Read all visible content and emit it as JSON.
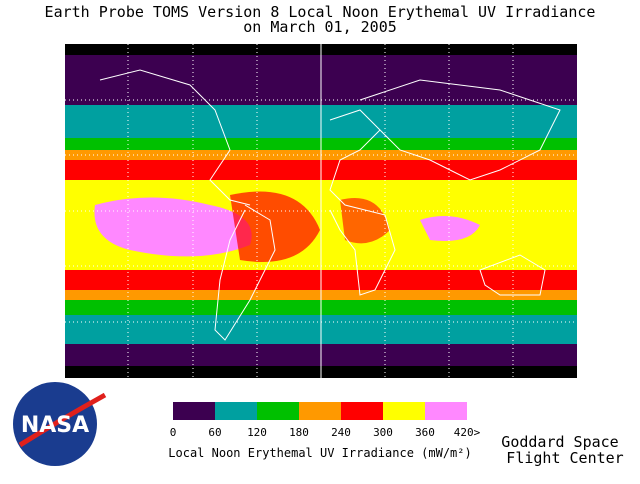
{
  "header": {
    "title": "Earth Probe TOMS Version 8 Local Noon Erythemal UV Irradiance",
    "subtitle": "on March 01, 2005"
  },
  "colorbar": {
    "colors": [
      "#3c0050",
      "#00a0a0",
      "#00c000",
      "#ff9900",
      "#ff0000",
      "#ffff00",
      "#ff88ff"
    ],
    "ticks": [
      "0",
      "60",
      "120",
      "180",
      "240",
      "300",
      "360",
      "420>"
    ],
    "label": "Local Noon Erythemal UV Irradiance (mW/m²)"
  },
  "logo": {
    "text": "NASA"
  },
  "footer": {
    "line1": "Goddard Space",
    "line2": "Flight Center"
  }
}
